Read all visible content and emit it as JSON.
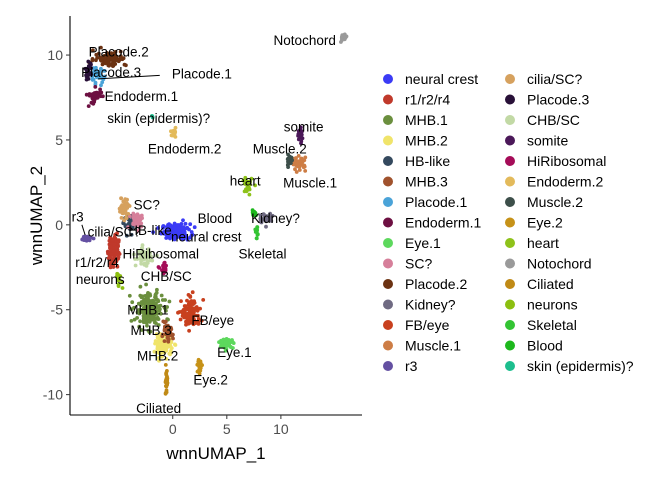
{
  "chart_data": {
    "type": "scatter",
    "title": "",
    "xlabel": "wnnUMAP_1",
    "ylabel": "wnnUMAP_2",
    "xlim": [
      -9.5,
      17.5
    ],
    "ylim": [
      -11.2,
      12.3
    ],
    "x_ticks": [
      0,
      5,
      10
    ],
    "x_tick_labels": [
      "0",
      "5",
      "10"
    ],
    "y_ticks": [
      -10,
      -5,
      0,
      5,
      10
    ],
    "y_tick_labels": [
      "-10",
      "-5",
      "0",
      "5",
      "10"
    ],
    "grid": false,
    "legend_position": "right",
    "legend_columns": 2,
    "series": [
      {
        "name": "neural crest",
        "color": "#3b3bf5",
        "center": [
          0.3,
          -0.4
        ],
        "spread": [
          1.3,
          0.45
        ],
        "n": 160
      },
      {
        "name": "r1/r2/r4",
        "color": "#c0392b",
        "center": [
          -5.5,
          -1.5
        ],
        "spread": [
          0.5,
          1.0
        ],
        "n": 110
      },
      {
        "name": "MHB.1",
        "color": "#6b8f3e",
        "center": [
          -2.2,
          -5.0
        ],
        "spread": [
          1.3,
          1.0
        ],
        "n": 190
      },
      {
        "name": "MHB.2",
        "color": "#f0e46a",
        "center": [
          -0.8,
          -7.1
        ],
        "spread": [
          0.8,
          0.6
        ],
        "n": 120
      },
      {
        "name": "HB-like",
        "color": "#34495e",
        "center": [
          -4.0,
          0.0
        ],
        "spread": [
          0.5,
          0.5
        ],
        "n": 40
      },
      {
        "name": "MHB.3",
        "color": "#a0522d",
        "center": [
          -0.5,
          -6.4
        ],
        "spread": [
          0.5,
          0.5
        ],
        "n": 50
      },
      {
        "name": "Placode.1",
        "color": "#4aa3d8",
        "center": [
          -7.0,
          8.8
        ],
        "spread": [
          0.7,
          0.45
        ],
        "n": 35
      },
      {
        "name": "Endoderm.1",
        "color": "#6d1042",
        "center": [
          -7.2,
          7.6
        ],
        "spread": [
          0.7,
          0.5
        ],
        "n": 35
      },
      {
        "name": "Eye.1",
        "color": "#5dd85d",
        "center": [
          5.0,
          -7.0
        ],
        "spread": [
          0.6,
          0.25
        ],
        "n": 60
      },
      {
        "name": "SC?",
        "color": "#d67f9a",
        "center": [
          -3.3,
          0.3
        ],
        "spread": [
          0.7,
          0.5
        ],
        "n": 45
      },
      {
        "name": "Placode.2",
        "color": "#6b3212",
        "center": [
          -5.8,
          9.8
        ],
        "spread": [
          1.5,
          0.45
        ],
        "n": 80
      },
      {
        "name": "Kidney?",
        "color": "#6f6a82",
        "center": [
          8.6,
          0.4
        ],
        "spread": [
          0.6,
          0.3
        ],
        "n": 35
      },
      {
        "name": "FB/eye",
        "color": "#c8401e",
        "center": [
          1.7,
          -5.2
        ],
        "spread": [
          0.9,
          0.9
        ],
        "n": 110
      },
      {
        "name": "Muscle.1",
        "color": "#cd7d45",
        "center": [
          11.7,
          3.6
        ],
        "spread": [
          0.6,
          0.35
        ],
        "n": 45
      },
      {
        "name": "r3",
        "color": "#6450a2",
        "center": [
          -8.0,
          -0.8
        ],
        "spread": [
          0.5,
          0.15
        ],
        "n": 25
      },
      {
        "name": "cilia/SC?",
        "color": "#d6a15e",
        "center": [
          -4.5,
          1.0
        ],
        "spread": [
          0.5,
          0.6
        ],
        "n": 45
      },
      {
        "name": "Placode.3",
        "color": "#281038",
        "center": [
          -7.8,
          9.0
        ],
        "spread": [
          0.3,
          0.5
        ],
        "n": 30
      },
      {
        "name": "CHB/SC",
        "color": "#c2d9a5",
        "center": [
          -2.7,
          -1.9
        ],
        "spread": [
          0.7,
          0.5
        ],
        "n": 55
      },
      {
        "name": "somite",
        "color": "#4b1859",
        "center": [
          11.8,
          5.3
        ],
        "spread": [
          0.3,
          0.5
        ],
        "n": 25
      },
      {
        "name": "HiRibosomal",
        "color": "#a50c58",
        "center": [
          -0.8,
          -2.6
        ],
        "spread": [
          0.35,
          0.3
        ],
        "n": 20
      },
      {
        "name": "Endoderm.2",
        "color": "#e3ba5b",
        "center": [
          0.1,
          5.3
        ],
        "spread": [
          0.25,
          0.25
        ],
        "n": 15
      },
      {
        "name": "Muscle.2",
        "color": "#3d4f4a",
        "center": [
          10.8,
          3.8
        ],
        "spread": [
          0.3,
          0.4
        ],
        "n": 25
      },
      {
        "name": "Eye.2",
        "color": "#c69218",
        "center": [
          2.5,
          -8.3
        ],
        "spread": [
          0.2,
          0.4
        ],
        "n": 25
      },
      {
        "name": "heart",
        "color": "#8ec21a",
        "center": [
          6.9,
          2.3
        ],
        "spread": [
          0.4,
          0.6
        ],
        "n": 30
      },
      {
        "name": "Notochord",
        "color": "#9a9a9a",
        "center": [
          15.8,
          11.0
        ],
        "spread": [
          0.3,
          0.25
        ],
        "n": 15
      },
      {
        "name": "Ciliated",
        "color": "#c08a16",
        "center": [
          -0.6,
          -9.2
        ],
        "spread": [
          0.12,
          0.8
        ],
        "n": 25
      },
      {
        "name": "neurons",
        "color": "#8cbf10",
        "center": [
          -5.0,
          -3.2
        ],
        "spread": [
          0.3,
          0.5
        ],
        "n": 15
      },
      {
        "name": "Skeletal",
        "color": "#33c433",
        "center": [
          7.8,
          -0.5
        ],
        "spread": [
          0.15,
          0.3
        ],
        "n": 12
      },
      {
        "name": "Blood",
        "color": "#1db81d",
        "center": [
          7.5,
          0.7
        ],
        "spread": [
          0.2,
          0.2
        ],
        "n": 10
      },
      {
        "name": "skin (epidermis)?",
        "color": "#1dbe8e",
        "center": [
          -1.9,
          6.4
        ],
        "spread": [
          0.08,
          0.1
        ],
        "n": 3
      }
    ],
    "annotations": [
      {
        "text": "Notochord",
        "x": 12.2,
        "y": 10.9
      },
      {
        "text": "Placode.2",
        "x": -5.0,
        "y": 10.2
      },
      {
        "text": "Placode.3",
        "x": -5.7,
        "y": 9.0
      },
      {
        "text": "Placode.1",
        "x": 2.7,
        "y": 8.9
      },
      {
        "text": "Endoderm.1",
        "x": -2.9,
        "y": 7.6
      },
      {
        "text": "skin (epidermis)?",
        "x": -1.3,
        "y": 6.3
      },
      {
        "text": "Endoderm.2",
        "x": 1.1,
        "y": 4.5
      },
      {
        "text": "somite",
        "x": 12.1,
        "y": 5.8
      },
      {
        "text": "Muscle.2",
        "x": 9.9,
        "y": 4.5
      },
      {
        "text": "Muscle.1",
        "x": 12.7,
        "y": 2.5
      },
      {
        "text": "heart",
        "x": 6.7,
        "y": 2.6
      },
      {
        "text": "SC?",
        "x": -2.4,
        "y": 1.2
      },
      {
        "text": "Blood",
        "x": 3.9,
        "y": 0.4
      },
      {
        "text": "Kidney?",
        "x": 9.5,
        "y": 0.4
      },
      {
        "text": "r3",
        "x": -8.8,
        "y": 0.5
      },
      {
        "text": "HB-like",
        "x": -2.1,
        "y": -0.3
      },
      {
        "text": "cilia/SC?",
        "x": -5.4,
        "y": -0.4
      },
      {
        "text": "neural crest",
        "x": 3.1,
        "y": -0.7
      },
      {
        "text": "HiRibosomal",
        "x": -1.1,
        "y": -1.7
      },
      {
        "text": "Skeletal",
        "x": 8.3,
        "y": -1.7
      },
      {
        "text": "r1/r2/r4",
        "x": -7.0,
        "y": -2.2
      },
      {
        "text": "CHB/SC",
        "x": -0.6,
        "y": -3.0
      },
      {
        "text": "neurons",
        "x": -6.7,
        "y": -3.2
      },
      {
        "text": "MHB.1",
        "x": -2.3,
        "y": -5.0
      },
      {
        "text": "FB/eye",
        "x": 3.7,
        "y": -5.6
      },
      {
        "text": "MHB.3",
        "x": -2.0,
        "y": -6.2
      },
      {
        "text": "MHB.2",
        "x": -1.4,
        "y": -7.7
      },
      {
        "text": "Eye.1",
        "x": 5.7,
        "y": -7.5
      },
      {
        "text": "Eye.2",
        "x": 3.5,
        "y": -9.1
      },
      {
        "text": "Ciliated",
        "x": -1.3,
        "y": -10.8
      }
    ],
    "connectors": [
      {
        "from": [
          -1.2,
          8.8
        ],
        "to": [
          -6.9,
          8.6
        ]
      },
      {
        "from": [
          -8.4,
          0.0
        ],
        "to": [
          -8.1,
          -0.6
        ]
      }
    ]
  }
}
